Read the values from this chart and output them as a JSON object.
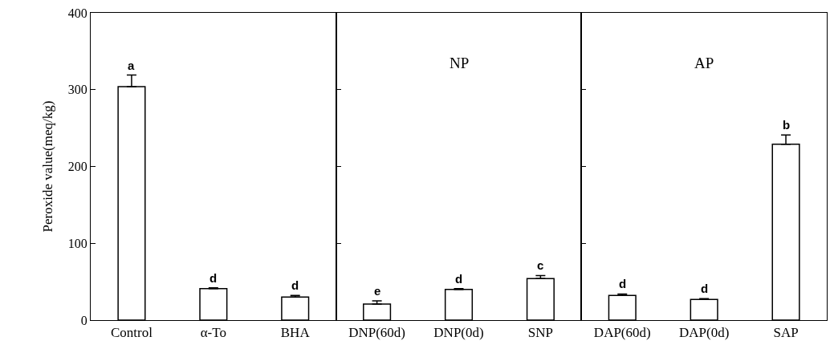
{
  "chart_data": [
    {
      "type": "bar",
      "ylabel": "Peroxide value(meq/kg)",
      "categories": [
        "Control",
        "α-To",
        "BHA"
      ],
      "values": [
        304,
        41,
        30
      ],
      "errors": [
        [
          304,
          319
        ],
        [
          41,
          42
        ],
        [
          30,
          32
        ]
      ],
      "value_labels": [
        "a",
        "d",
        "d"
      ],
      "color": "#ffffff",
      "ylim": [
        0,
        400
      ],
      "yticks": [
        0,
        100,
        200,
        300,
        400
      ]
    },
    {
      "type": "bar",
      "categories": [
        "DNP(60d)",
        "DNP(0d)",
        "SNP"
      ],
      "values": [
        21,
        40,
        54
      ],
      "errors": [
        [
          21,
          25
        ],
        [
          40,
          41
        ],
        [
          54,
          58
        ]
      ],
      "value_labels": [
        "e",
        "d",
        "c"
      ],
      "color": "#ffffff",
      "annotations": [
        "NP"
      ],
      "ylim": [
        0,
        400
      ],
      "yticks": [
        0,
        100,
        200,
        300,
        400
      ],
      "tick_labels": "x"
    },
    {
      "type": "bar",
      "categories": [
        "DAP(60d)",
        "DAP(0d)",
        "SAP"
      ],
      "values": [
        32,
        27,
        229
      ],
      "errors": [
        [
          32,
          34
        ],
        [
          27,
          28
        ],
        [
          229,
          241
        ]
      ],
      "value_labels": [
        "d",
        "d",
        "b"
      ],
      "color": "#ffffff",
      "annotations": [
        "AP"
      ],
      "ylim": [
        0,
        400
      ],
      "yticks": [
        0,
        100,
        200,
        300,
        400
      ],
      "tick_labels": "x"
    }
  ]
}
